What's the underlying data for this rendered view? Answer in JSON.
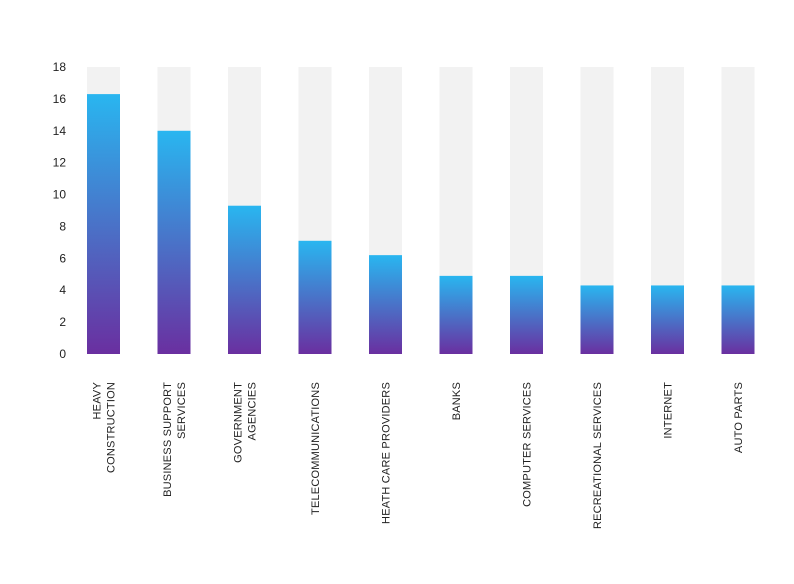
{
  "chart_data": {
    "type": "bar",
    "categories": [
      [
        "HEAVY",
        "CONSTRUCTION"
      ],
      [
        "BUSINESS SUPPORT",
        "SERVICES"
      ],
      [
        "GOVERNMENT",
        "AGENCIES"
      ],
      [
        "TELECOMMUNICATIONS"
      ],
      [
        "HEATH CARE PROVIDERS"
      ],
      [
        "BANKS"
      ],
      [
        "COMPUTER SERVICES"
      ],
      [
        "RECREATIONAL SERVICES"
      ],
      [
        "INTERNET"
      ],
      [
        "AUTO PARTS"
      ]
    ],
    "values": [
      16.3,
      14.0,
      9.3,
      7.1,
      6.2,
      4.9,
      4.9,
      4.3,
      4.3,
      4.3
    ],
    "ylim": [
      0,
      18
    ],
    "yticks": [
      "0",
      "2",
      "4",
      "6",
      "8",
      "10",
      "12",
      "14",
      "16",
      "18"
    ],
    "background_max": 18,
    "grid": false,
    "legend": "none",
    "colors": {
      "bar_top": "#29b6f0",
      "bar_bottom": "#6a2fa0",
      "track": "#f2f2f2",
      "text": "#222222"
    }
  }
}
